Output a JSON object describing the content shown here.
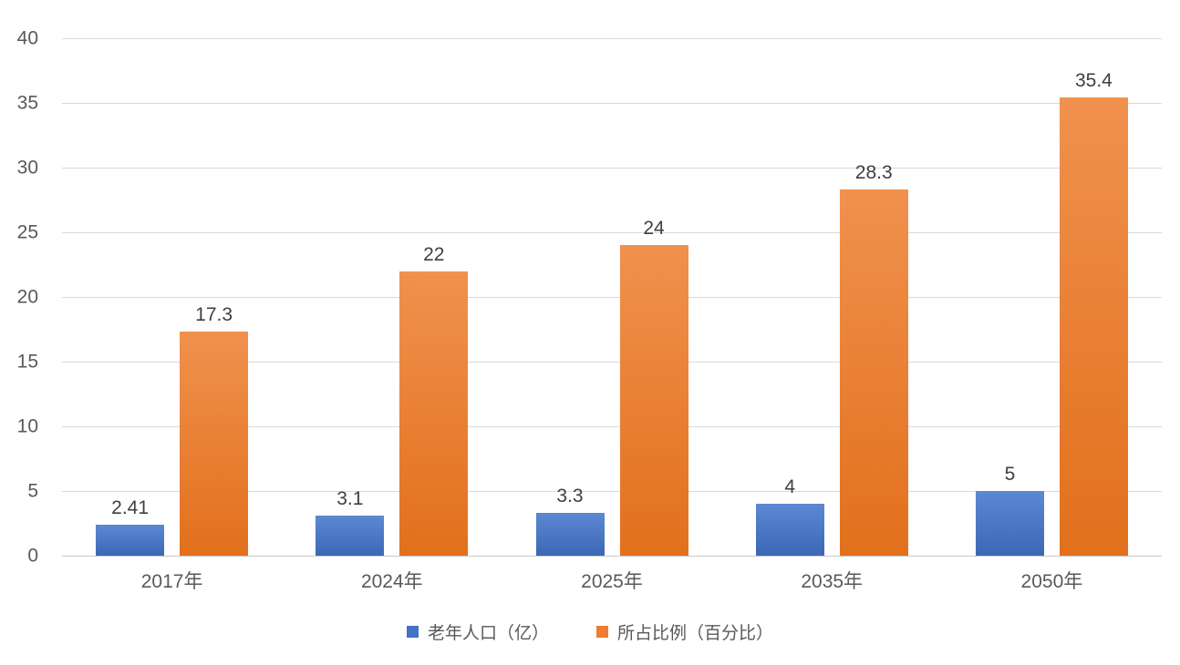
{
  "chart_data": {
    "type": "bar",
    "title": "",
    "xlabel": "",
    "ylabel": "",
    "categories": [
      "2017年",
      "2024年",
      "2025年",
      "2035年",
      "2050年"
    ],
    "series": [
      {
        "name": "老年人口（亿）",
        "values": [
          2.41,
          3.1,
          3.3,
          4,
          5
        ],
        "color": "#4472C4",
        "color_top": "#5d88d2",
        "color_bottom": "#3c67b5"
      },
      {
        "name": "所占比例（百分比）",
        "values": [
          17.3,
          22,
          24,
          28.3,
          35.4
        ],
        "color": "#ED7D31",
        "color_top": "#f0914e",
        "color_bottom": "#e2701c"
      }
    ],
    "ylim": [
      0,
      40
    ],
    "yticks": [
      0,
      5,
      10,
      15,
      20,
      25,
      30,
      35,
      40
    ],
    "grid": true,
    "gridline_color": "#d9d9d9",
    "axis_label_color": "#595959",
    "data_label_color": "#3f3f3f",
    "legend_position": "bottom"
  }
}
